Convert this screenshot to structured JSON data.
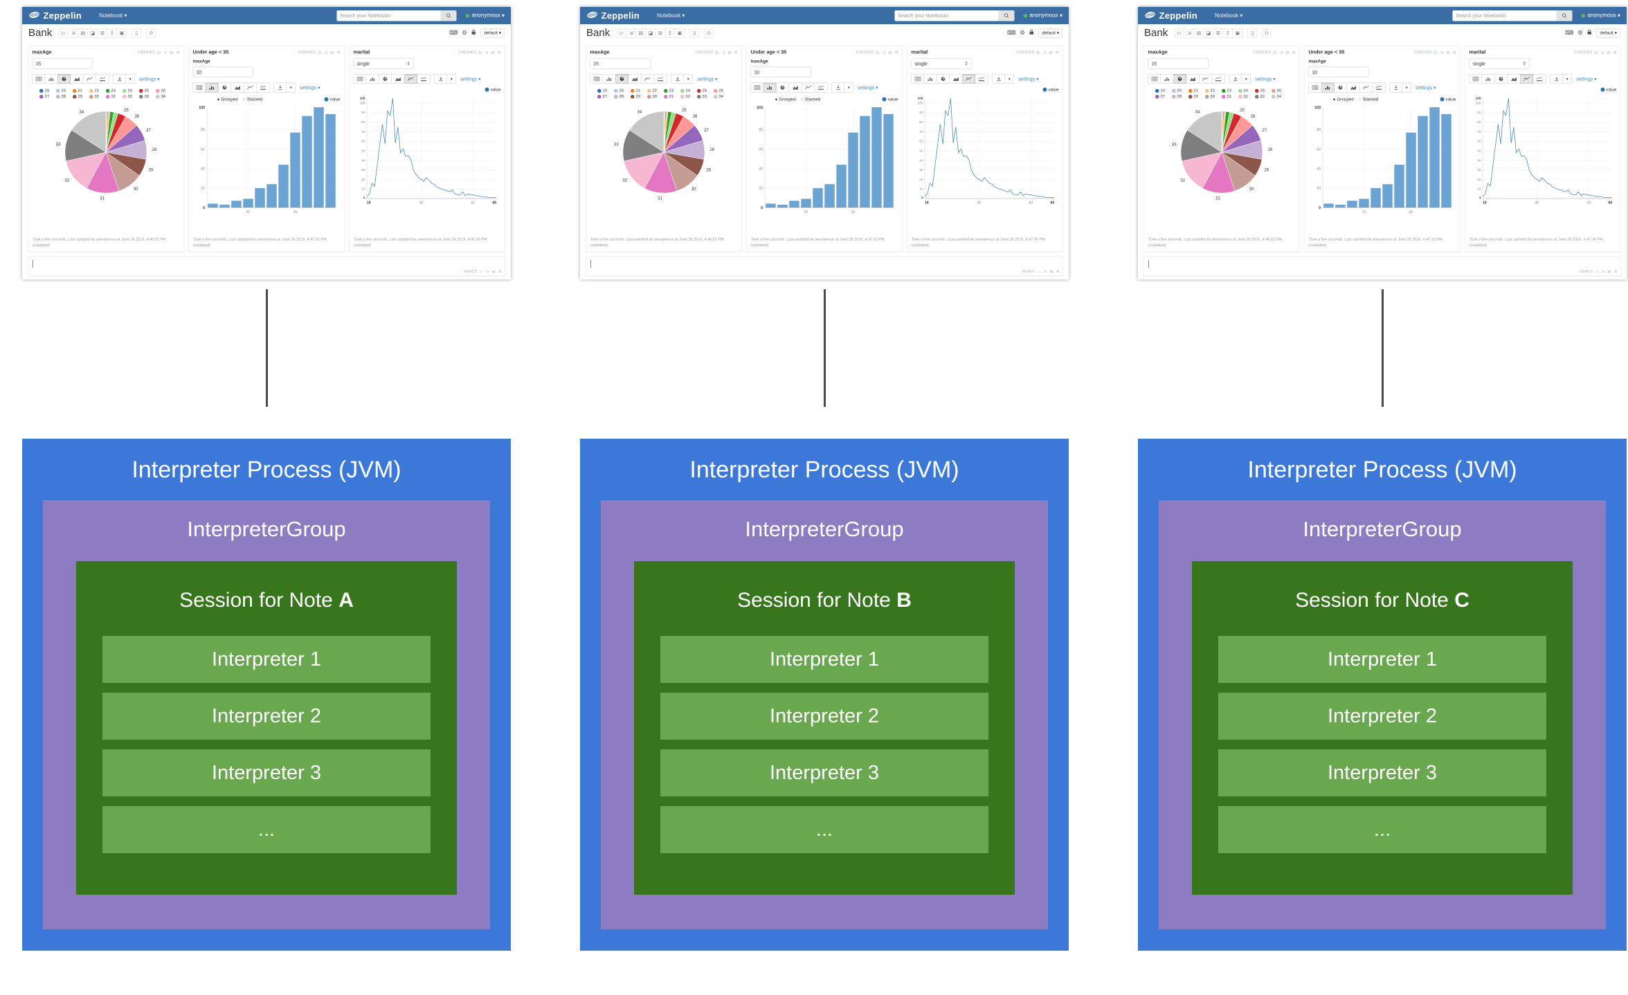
{
  "diagram": {
    "process_title": "Interpreter Process (JVM)",
    "group_title": "InterpreterGroup",
    "session_prefix": "Session for Note ",
    "interpreters": [
      "Interpreter 1",
      "Interpreter 2",
      "Interpreter 3",
      "..."
    ],
    "columns": [
      {
        "note": "A"
      },
      {
        "note": "B"
      },
      {
        "note": "C"
      }
    ],
    "colors": {
      "process": "#3c78d8",
      "group": "#8e7cc3",
      "session": "#38761d",
      "interpreter": "#6aa84f"
    }
  },
  "zeppelin": {
    "navbar": {
      "brand": "Zeppelin",
      "menu": "Notebook",
      "search_placeholder": "Search your Notebooks",
      "user": "anonymous",
      "user_status_color": "#5cb85c"
    },
    "note_title": "Bank",
    "default_interpreter": "default",
    "status_finished": "FINISHED",
    "status_ready": "READY",
    "settings_label": "settings",
    "panels": [
      {
        "title": "maxAge",
        "input_value": "35",
        "footer": "Took a few seconds. Last updated by anonymous at June 26 2016, 4:46:52 PM.",
        "outdated": "(outdated)"
      },
      {
        "title": "Under age < 35",
        "field_label": "maxAge",
        "input_value": "30",
        "footer": "Took a few seconds. Last updated by anonymous at June 26 2016, 4:47:32 PM.",
        "outdated": "(outdated)"
      },
      {
        "title": "marital",
        "select_value": "single",
        "footer": "Took a few seconds. Last updated by anonymous at June 26 2016, 4:47:36 PM.",
        "outdated": "(outdated)"
      }
    ]
  },
  "icons": {
    "caret_down": "▾",
    "play": "▷",
    "expand": "⇲",
    "show_output": "▤",
    "erase": "◪",
    "copy": "⊞",
    "export": "↥",
    "file": "▣",
    "trash": "▯",
    "scheduler": "⊙",
    "keyboard": "⌨",
    "gear": "⚙",
    "stepper": "⇕",
    "radio_on": "●",
    "radio_off": "○"
  },
  "chart_data": [
    {
      "type": "pie",
      "paragraph": "maxAge",
      "categories": [
        "19",
        "20",
        "21",
        "22",
        "23",
        "24",
        "25",
        "26",
        "27",
        "28",
        "29",
        "30",
        "31",
        "32",
        "33",
        "34"
      ],
      "values": [
        4,
        3,
        7,
        9,
        20,
        24,
        44,
        77,
        94,
        103,
        96,
        140,
        180,
        190,
        175,
        220
      ],
      "colors": [
        "#1f77b4",
        "#aec7e8",
        "#ff7f0e",
        "#ffbb78",
        "#2ca02c",
        "#98df8a",
        "#d62728",
        "#ff9896",
        "#9467bd",
        "#c5b0d5",
        "#8c564b",
        "#c49c94",
        "#e377c2",
        "#f7b6d2",
        "#7f7f7f",
        "#c7c7c7"
      ],
      "labeled_categories": [
        "25",
        "26",
        "27",
        "28",
        "29",
        "30",
        "31",
        "32",
        "33",
        "34"
      ],
      "legend_position": "top"
    },
    {
      "type": "bar",
      "paragraph": "Under age < 35",
      "categories": [
        "19",
        "20",
        "21",
        "22",
        "23",
        "24",
        "25",
        "26",
        "27",
        "28",
        "29"
      ],
      "values": [
        4,
        3,
        7,
        9,
        20,
        24,
        44,
        77,
        94,
        103,
        96
      ],
      "ylim": [
        0,
        103
      ],
      "yticks": [
        0,
        20,
        40,
        60,
        80,
        103
      ],
      "xticks": [
        "22",
        "26"
      ],
      "modes": [
        "Grouped",
        "Stacked"
      ],
      "legend": [
        "value"
      ],
      "legend_color": "#1f77b4",
      "bar_color": "#6ba3d2",
      "grid": true
    },
    {
      "type": "line",
      "paragraph": "marital",
      "x_start": 19,
      "x_end": 69,
      "values": [
        2,
        5,
        16,
        13,
        35,
        57,
        78,
        57,
        92,
        87,
        105,
        58,
        75,
        48,
        52,
        44,
        45,
        41,
        30,
        25,
        22,
        20,
        18,
        22,
        19,
        16,
        15,
        12,
        11,
        10,
        9,
        8,
        7,
        9,
        5,
        4,
        4,
        7,
        3,
        5,
        4,
        4,
        3,
        3,
        2,
        2,
        2,
        1,
        1,
        1,
        1
      ],
      "ylim": [
        0,
        105
      ],
      "yticks": [
        1,
        10,
        20,
        30,
        40,
        50,
        60,
        70,
        80,
        90,
        100,
        105
      ],
      "xticks": [
        19,
        40,
        60,
        69
      ],
      "legend": [
        "value"
      ],
      "legend_color": "#1f77b4",
      "line_color": "#4e8cc2",
      "grid": true
    }
  ]
}
